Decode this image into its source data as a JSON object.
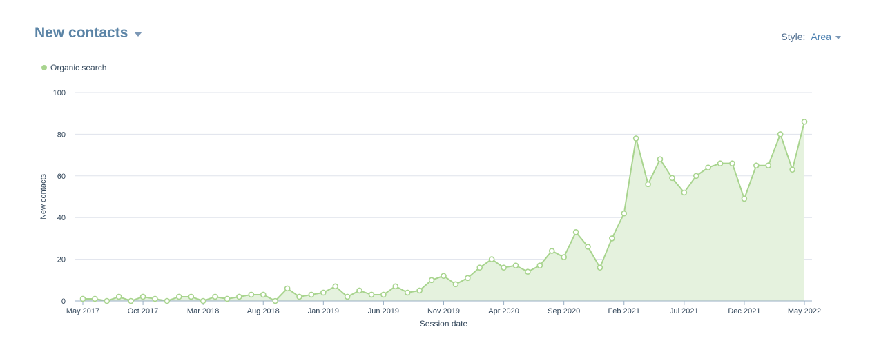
{
  "header": {
    "title": "New contacts",
    "style_label": "Style:",
    "style_value": "Area"
  },
  "colors": {
    "series": "#a8d48e",
    "fill": "#e5f2de",
    "title": "#5b84a6",
    "axis": "#99afc4"
  },
  "chart_data": {
    "type": "area",
    "xlabel": "Session date",
    "ylabel": "New contacts",
    "ylim": [
      0,
      100
    ],
    "yticks": [
      0,
      20,
      40,
      60,
      80,
      100
    ],
    "x_tick_labels": [
      {
        "index": 0,
        "label": "May 2017"
      },
      {
        "index": 5,
        "label": "Oct 2017"
      },
      {
        "index": 10,
        "label": "Mar 2018"
      },
      {
        "index": 15,
        "label": "Aug 2018"
      },
      {
        "index": 20,
        "label": "Jan 2019"
      },
      {
        "index": 25,
        "label": "Jun 2019"
      },
      {
        "index": 30,
        "label": "Nov 2019"
      },
      {
        "index": 35,
        "label": "Apr 2020"
      },
      {
        "index": 40,
        "label": "Sep 2020"
      },
      {
        "index": 45,
        "label": "Feb 2021"
      },
      {
        "index": 50,
        "label": "Jul 2021"
      },
      {
        "index": 55,
        "label": "Dec 2021"
      },
      {
        "index": 60,
        "label": "May 2022"
      }
    ],
    "grid": true,
    "legend_position": "top-left",
    "series": [
      {
        "name": "Organic search",
        "values": [
          1,
          1,
          0,
          2,
          0,
          2,
          1,
          0,
          2,
          2,
          0,
          2,
          1,
          2,
          3,
          3,
          0,
          6,
          2,
          3,
          4,
          7,
          2,
          5,
          3,
          3,
          7,
          4,
          5,
          10,
          12,
          8,
          11,
          16,
          20,
          16,
          17,
          14,
          17,
          24,
          21,
          33,
          26,
          16,
          30,
          42,
          78,
          56,
          68,
          59,
          52,
          60,
          64,
          66,
          66,
          49,
          65,
          65,
          80,
          63,
          86
        ]
      }
    ]
  }
}
